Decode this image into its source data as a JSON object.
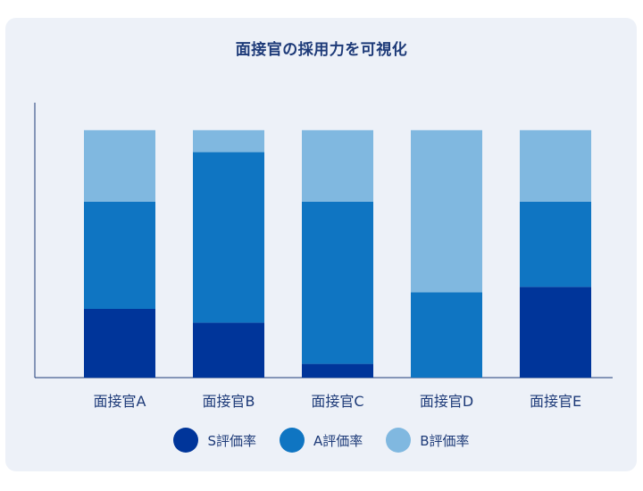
{
  "chart_data": {
    "type": "bar",
    "stacked": true,
    "title": "面接官の採用力を可視化",
    "categories": [
      "面接官A",
      "面接官B",
      "面接官C",
      "面接官D",
      "面接官E"
    ],
    "series": [
      {
        "name": "S評価率",
        "color": "#00359a",
        "values": [
          25,
          20,
          5,
          0,
          33
        ]
      },
      {
        "name": "A評価率",
        "color": "#0f75c2",
        "values": [
          39,
          62,
          59,
          31,
          31
        ]
      },
      {
        "name": "B評価率",
        "color": "#80b8e0",
        "values": [
          26,
          8,
          26,
          59,
          26
        ]
      }
    ],
    "ylim": [
      0,
      100
    ],
    "grid": false,
    "legend_position": "bottom"
  }
}
